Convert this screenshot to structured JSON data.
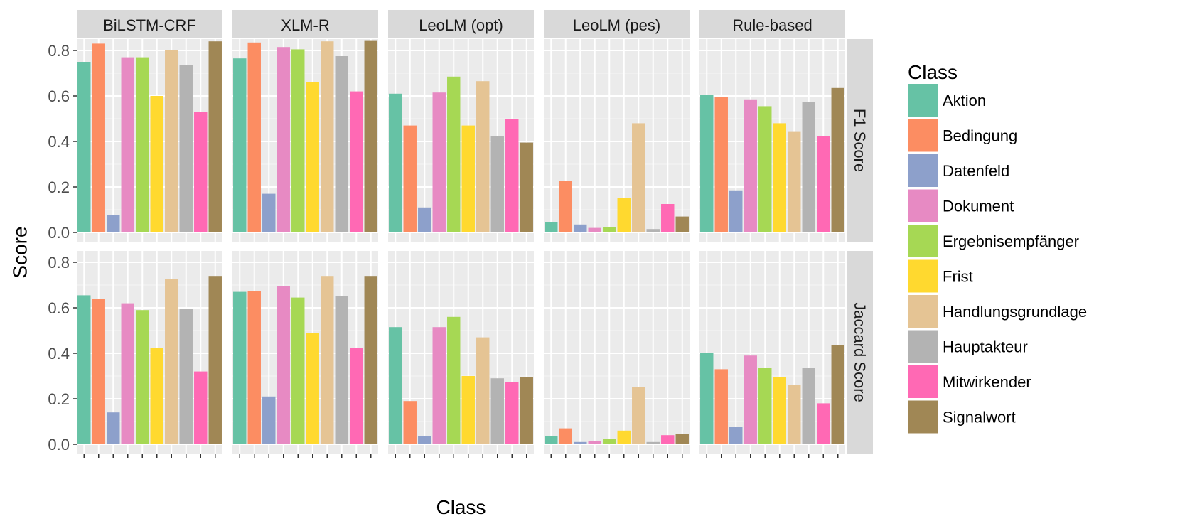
{
  "chart_data": {
    "type": "bar",
    "xlabel": "Class",
    "ylabel": "Score",
    "ylim": [
      0,
      0.85
    ],
    "yticks": [
      "0.0",
      "0.2",
      "0.4",
      "0.6",
      "0.8"
    ],
    "grid": true,
    "legend": {
      "title": "Class",
      "placement": "right",
      "entries": [
        "Aktion",
        "Bedingung",
        "Datenfeld",
        "Dokument",
        "Ergebnisempfänger",
        "Frist",
        "Handlungsgrundlage",
        "Hauptakteur",
        "Mitwirkender",
        "Signalwort"
      ]
    },
    "colors": [
      "#66C2A5",
      "#FC8D62",
      "#8DA0CB",
      "#E78AC3",
      "#A6D854",
      "#FFD92F",
      "#E5C494",
      "#B3B3B3",
      "#FF69B4",
      "#A08755"
    ],
    "categories": [
      "Aktion",
      "Bedingung",
      "Datenfeld",
      "Dokument",
      "Ergebnisempfänger",
      "Frist",
      "Handlungsgrundlage",
      "Hauptakteur",
      "Mitwirkender",
      "Signalwort"
    ],
    "columns": [
      "BiLSTM-CRF",
      "XLM-R",
      "LeoLM (opt)",
      "LeoLM (pes)",
      "Rule-based"
    ],
    "rows": [
      "F1 Score",
      "Jaccard Score"
    ],
    "panels": [
      {
        "column": "BiLSTM-CRF",
        "row": "F1 Score",
        "values": [
          0.75,
          0.83,
          0.075,
          0.77,
          0.77,
          0.6,
          0.8,
          0.735,
          0.53,
          0.84
        ]
      },
      {
        "column": "XLM-R",
        "row": "F1 Score",
        "values": [
          0.765,
          0.835,
          0.17,
          0.815,
          0.805,
          0.66,
          0.84,
          0.775,
          0.62,
          0.845
        ]
      },
      {
        "column": "LeoLM (opt)",
        "row": "F1 Score",
        "values": [
          0.61,
          0.47,
          0.11,
          0.615,
          0.685,
          0.47,
          0.665,
          0.425,
          0.5,
          0.395
        ]
      },
      {
        "column": "LeoLM (pes)",
        "row": "F1 Score",
        "values": [
          0.045,
          0.225,
          0.035,
          0.02,
          0.025,
          0.15,
          0.48,
          0.015,
          0.125,
          0.07
        ]
      },
      {
        "column": "Rule-based",
        "row": "F1 Score",
        "values": [
          0.605,
          0.595,
          0.185,
          0.585,
          0.555,
          0.48,
          0.445,
          0.575,
          0.425,
          0.635
        ]
      },
      {
        "column": "BiLSTM-CRF",
        "row": "Jaccard Score",
        "values": [
          0.655,
          0.64,
          0.14,
          0.62,
          0.59,
          0.425,
          0.725,
          0.595,
          0.32,
          0.74
        ]
      },
      {
        "column": "XLM-R",
        "row": "Jaccard Score",
        "values": [
          0.67,
          0.675,
          0.21,
          0.695,
          0.645,
          0.49,
          0.74,
          0.65,
          0.425,
          0.74
        ]
      },
      {
        "column": "LeoLM (opt)",
        "row": "Jaccard Score",
        "values": [
          0.515,
          0.19,
          0.035,
          0.515,
          0.56,
          0.3,
          0.47,
          0.29,
          0.275,
          0.295
        ]
      },
      {
        "column": "LeoLM (pes)",
        "row": "Jaccard Score",
        "values": [
          0.035,
          0.07,
          0.01,
          0.015,
          0.025,
          0.06,
          0.25,
          0.01,
          0.04,
          0.045
        ]
      },
      {
        "column": "Rule-based",
        "row": "Jaccard Score",
        "values": [
          0.4,
          0.33,
          0.075,
          0.39,
          0.335,
          0.295,
          0.26,
          0.335,
          0.18,
          0.435
        ]
      }
    ]
  }
}
